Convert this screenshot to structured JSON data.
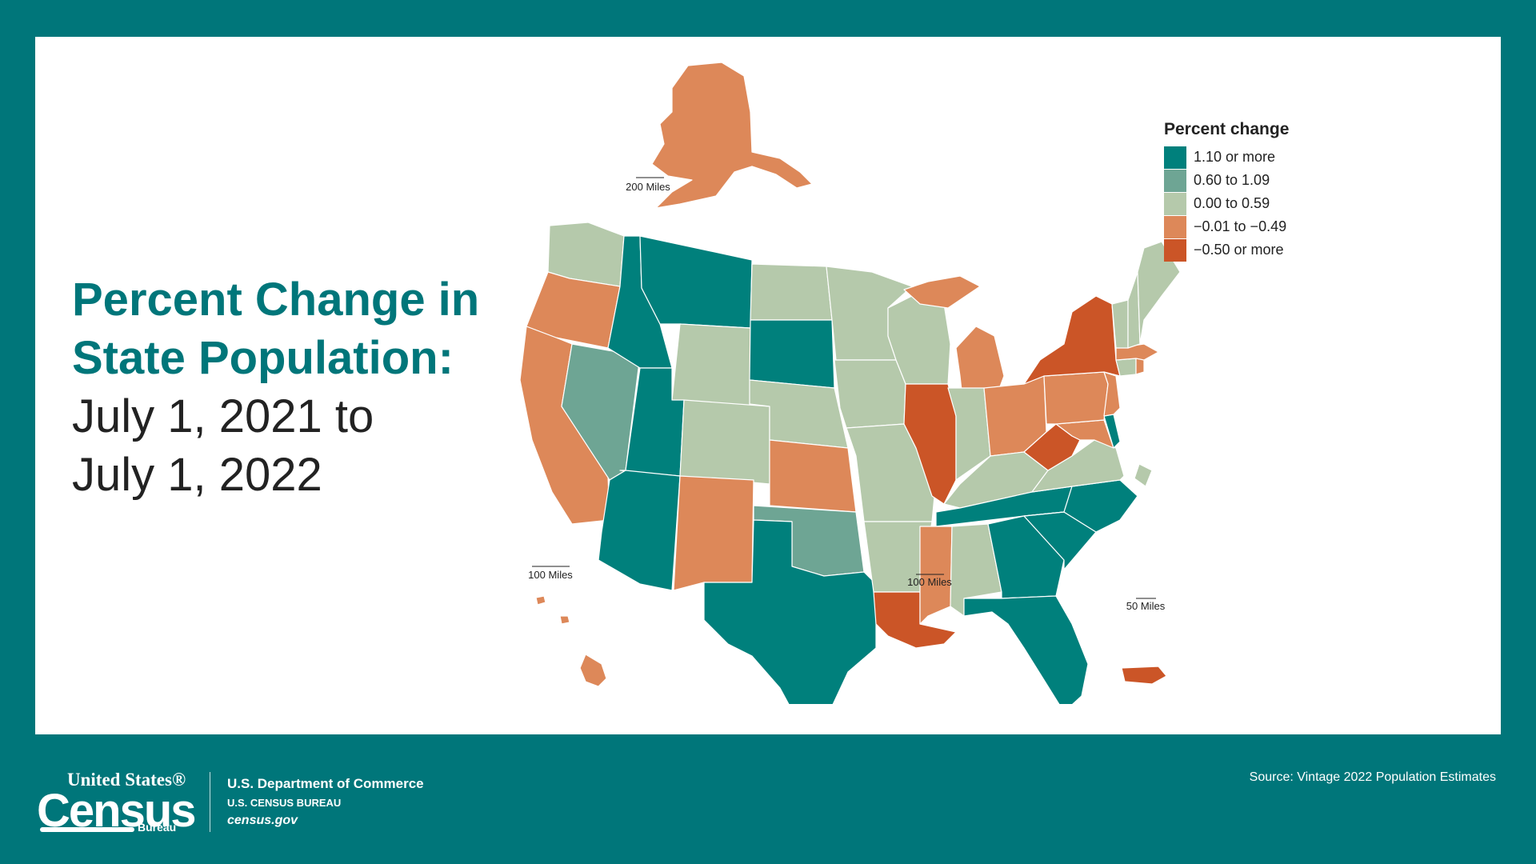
{
  "title": {
    "line1": "Percent Change in",
    "line2": "State Population:",
    "line3": "July 1, 2021 to",
    "line4": "July 1, 2022"
  },
  "legend": {
    "title": "Percent change",
    "items": [
      {
        "label": "1.10 or more",
        "color": "#00807c"
      },
      {
        "label": "0.60 to 1.09",
        "color": "#6ea594"
      },
      {
        "label": "0.00 to 0.59",
        "color": "#b5c9ab"
      },
      {
        "label": "−0.01 to −0.49",
        "color": "#dd8859"
      },
      {
        "label": "−0.50 or more",
        "color": "#cb5527"
      }
    ]
  },
  "scale_bars": {
    "alaska": "200 Miles",
    "hawaii": "100 Miles",
    "conus": "100 Miles",
    "puerto_rico": "50 Miles"
  },
  "footer": {
    "logo_line1": "United States®",
    "logo_line2": "Census",
    "logo_line3": "Bureau",
    "dept_line1": "U.S. Department of Commerce",
    "dept_line2": "U.S. CENSUS BUREAU",
    "dept_line3": "census.gov",
    "source": "Source: Vintage 2022 Population Estimates"
  },
  "map_data": {
    "category_colors": {
      "high": "#00807c",
      "mid_high": "#6ea594",
      "mid": "#b5c9ab",
      "low": "#dd8859",
      "very_low": "#cb5527"
    },
    "states": {
      "WA": "mid",
      "OR": "low",
      "CA": "low",
      "NV": "mid_high",
      "ID": "high",
      "MT": "high",
      "WY": "mid",
      "UT": "high",
      "AZ": "high",
      "CO": "mid",
      "NM": "low",
      "ND": "mid",
      "SD": "high",
      "NE": "mid",
      "KS": "low",
      "OK": "mid_high",
      "TX": "high",
      "MN": "mid",
      "IA": "mid",
      "MO": "mid",
      "AR": "mid",
      "LA": "very_low",
      "WI": "mid",
      "IL": "very_low",
      "MI": "low",
      "IN": "mid",
      "OH": "low",
      "KY": "mid",
      "TN": "high",
      "MS": "low",
      "AL": "mid",
      "GA": "high",
      "FL": "high",
      "SC": "high",
      "NC": "high",
      "VA": "mid",
      "WV": "very_low",
      "MD": "low",
      "DE": "high",
      "DC": "mid",
      "PA": "low",
      "NJ": "low",
      "NY": "very_low",
      "CT": "mid",
      "RI": "low",
      "MA": "low",
      "VT": "mid",
      "NH": "mid",
      "ME": "mid",
      "AK": "low",
      "HI": "low",
      "PR": "very_low"
    }
  }
}
